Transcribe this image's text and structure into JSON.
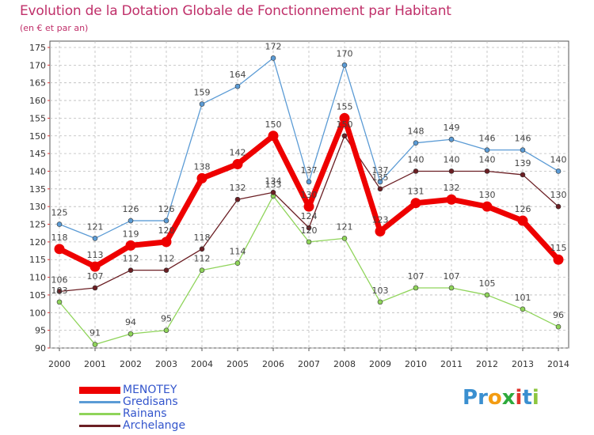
{
  "title": "Evolution de la Dotation Globale de Fonctionnement par Habitant",
  "subtitle": "(en € et par an)",
  "logo": {
    "text": "Proxiti",
    "letters": [
      {
        "ch": "P",
        "color": "#3a8fd0"
      },
      {
        "ch": "r",
        "color": "#3a8fd0"
      },
      {
        "ch": "o",
        "color": "#f39c12"
      },
      {
        "ch": "x",
        "color": "#2eaa3c"
      },
      {
        "ch": "i",
        "color": "#e0342c"
      },
      {
        "ch": "t",
        "color": "#3a8fd0"
      },
      {
        "ch": "i",
        "color": "#8dc63f"
      }
    ]
  },
  "chart_data": {
    "type": "line",
    "title": "Evolution de la Dotation Globale de Fonctionnement par Habitant",
    "subtitle": "(en € et par an)",
    "x": [
      "2000",
      "2001",
      "2002",
      "2003",
      "2004",
      "2005",
      "2006",
      "2007",
      "2008",
      "2009",
      "2010",
      "2011",
      "2012",
      "2013",
      "2014"
    ],
    "ylim": [
      90,
      175
    ],
    "yticks": [
      90,
      95,
      100,
      105,
      110,
      115,
      120,
      125,
      130,
      135,
      140,
      145,
      150,
      155,
      160,
      165,
      170,
      175
    ],
    "grid": "dashed",
    "legend_position": "bottom-left",
    "series": [
      {
        "name": "MENOTEY",
        "color": "#ee0000",
        "values": [
          118,
          113,
          119,
          120,
          138,
          142,
          150,
          130,
          155,
          123,
          131,
          132,
          130,
          126,
          115
        ]
      },
      {
        "name": "Gredisans",
        "color": "#5b9bd5",
        "values": [
          125,
          121,
          126,
          126,
          159,
          164,
          172,
          137,
          170,
          137,
          148,
          149,
          146,
          146,
          140
        ]
      },
      {
        "name": "Rainans",
        "color": "#8fd45a",
        "values": [
          103,
          91,
          94,
          95,
          112,
          114,
          133,
          120,
          121,
          103,
          107,
          107,
          105,
          101,
          96
        ]
      },
      {
        "name": "Archelange",
        "color": "#6b1f24",
        "values": [
          106,
          107,
          112,
          112,
          118,
          132,
          134,
          124,
          150,
          135,
          140,
          140,
          140,
          139,
          130
        ]
      }
    ]
  }
}
